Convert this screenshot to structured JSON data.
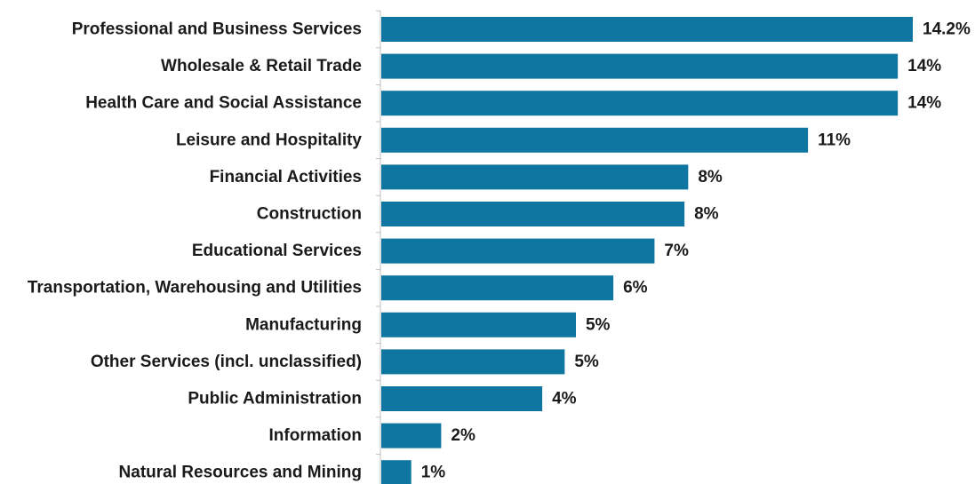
{
  "chart_data": {
    "type": "bar",
    "orientation": "horizontal",
    "title": "",
    "xlabel": "",
    "ylabel": "",
    "categories": [
      "Professional and Business Services",
      "Wholesale & Retail Trade",
      "Health Care and Social Assistance",
      "Leisure and Hospitality",
      "Financial Activities",
      "Construction",
      "Educational Services",
      "Transportation, Warehousing and Utilities",
      "Manufacturing",
      "Other Services (incl. unclassified)",
      "Public Administration",
      "Information",
      "Natural Resources and Mining"
    ],
    "values": [
      14.2,
      13.8,
      13.8,
      11.4,
      8.2,
      8.1,
      7.3,
      6.2,
      5.2,
      4.9,
      4.3,
      1.6,
      0.8
    ],
    "value_labels": [
      "14.2%",
      "14%",
      "14%",
      "11%",
      "8%",
      "8%",
      "7%",
      "6%",
      "5%",
      "5%",
      "4%",
      "2%",
      "1%"
    ],
    "xlim": [
      0,
      14.2
    ],
    "grid": false,
    "legend": "none",
    "bar_color": "#0e76a0",
    "axis_color": "#bfbfbf"
  }
}
